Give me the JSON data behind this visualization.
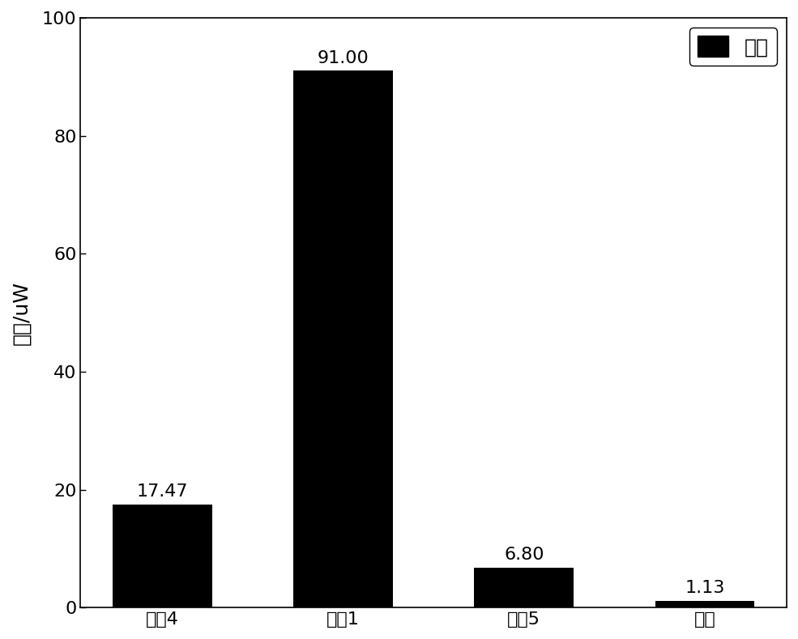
{
  "categories": [
    "文爱4",
    "文爱1",
    "文爱5",
    "本文"
  ],
  "values": [
    17.47,
    91.0,
    6.8,
    1.13
  ],
  "bar_color": "#000000",
  "ylabel": "功耗/uW",
  "ylim": [
    0,
    100
  ],
  "yticks": [
    0,
    20,
    40,
    60,
    80,
    100
  ],
  "legend_label": "功耗",
  "value_labels": [
    "17.47",
    "91.00",
    "6.80",
    "1.13"
  ],
  "background_color": "#ffffff",
  "label_fontsize": 18,
  "tick_fontsize": 16,
  "annot_fontsize": 16,
  "legend_fontsize": 18,
  "bar_width": 0.55
}
